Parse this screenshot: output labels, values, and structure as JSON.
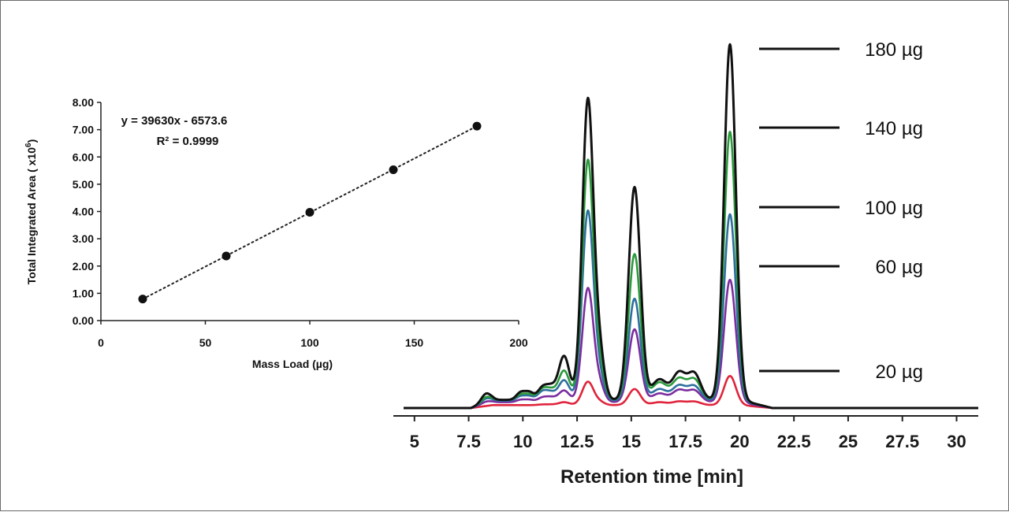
{
  "chart_data": [
    {
      "type": "scatter",
      "xlabel": "Mass Load (µg)",
      "ylabel": "Total Integrated Area ( x10",
      "ylabel_superscript": "6",
      "ylabel_close": ")",
      "xlim": [
        0,
        200
      ],
      "ylim": [
        0,
        8
      ],
      "x_ticks": [
        "0",
        "50",
        "100",
        "150",
        "200"
      ],
      "y_ticks": [
        "0.00",
        "1.00",
        "2.00",
        "3.00",
        "4.00",
        "5.00",
        "6.00",
        "7.00",
        "8.00"
      ],
      "points": [
        {
          "x": 20,
          "y": 0.79
        },
        {
          "x": 60,
          "y": 2.37
        },
        {
          "x": 100,
          "y": 3.97
        },
        {
          "x": 140,
          "y": 5.53
        },
        {
          "x": 180,
          "y": 7.13
        }
      ],
      "trendline": {
        "style": "dotted",
        "equation": "y = 39630x - 6573.6",
        "r_squared": "R² = 0.9999"
      },
      "grid": false
    },
    {
      "type": "line",
      "xlabel": "Retention time [min]",
      "xlim": [
        4.5,
        31
      ],
      "x_ticks": [
        "5",
        "7.5",
        "10",
        "12.5",
        "15",
        "17.5",
        "20",
        "22.5",
        "25",
        "27.5",
        "30"
      ],
      "y_axis_visible": false,
      "grid": false,
      "legend_placement": "top-right",
      "peaks": [
        {
          "rt": 8.3,
          "width": 0.22
        },
        {
          "rt": 9.9,
          "width": 0.2
        },
        {
          "rt": 10.3,
          "width": 0.2
        },
        {
          "rt": 10.9,
          "width": 0.22
        },
        {
          "rt": 11.3,
          "width": 0.22
        },
        {
          "rt": 11.9,
          "width": 0.25
        },
        {
          "rt": 13.0,
          "width": 0.26
        },
        {
          "rt": 13.55,
          "width": 0.22
        },
        {
          "rt": 15.15,
          "width": 0.27
        },
        {
          "rt": 16.3,
          "width": 0.35
        },
        {
          "rt": 17.2,
          "width": 0.3
        },
        {
          "rt": 17.9,
          "width": 0.3
        },
        {
          "rt": 19.55,
          "width": 0.27
        }
      ],
      "series": [
        {
          "name": "20 µg",
          "color": "#e0243c",
          "baseline": 0.01,
          "heights": [
            0.0,
            0.0,
            0.0,
            0.002,
            0.002,
            0.01,
            0.08,
            0.01,
            0.055,
            0.01,
            0.012,
            0.012,
            0.1
          ]
        },
        {
          "name": "60 µg",
          "color": "#7b2d9e",
          "baseline": 0.02,
          "heights": [
            0.008,
            0.008,
            0.008,
            0.015,
            0.015,
            0.04,
            0.39,
            0.05,
            0.25,
            0.03,
            0.04,
            0.04,
            0.42
          ]
        },
        {
          "name": "100 µg",
          "color": "#2e6f9e",
          "baseline": 0.025,
          "heights": [
            0.015,
            0.015,
            0.015,
            0.03,
            0.025,
            0.07,
            0.65,
            0.07,
            0.35,
            0.04,
            0.05,
            0.05,
            0.64
          ]
        },
        {
          "name": "140 µg",
          "color": "#2b9a3c",
          "baseline": 0.028,
          "heights": [
            0.018,
            0.018,
            0.018,
            0.035,
            0.03,
            0.1,
            0.82,
            0.1,
            0.5,
            0.06,
            0.07,
            0.07,
            0.92
          ]
        },
        {
          "name": "180 µg",
          "color": "#111111",
          "baseline": 0.028,
          "heights": [
            0.03,
            0.025,
            0.025,
            0.04,
            0.04,
            0.15,
            1.03,
            0.14,
            0.73,
            0.07,
            0.09,
            0.09,
            1.22
          ]
        }
      ],
      "legend": [
        "180 µg",
        "140 µg",
        "100 µg",
        "60 µg",
        "20 µg"
      ]
    }
  ]
}
